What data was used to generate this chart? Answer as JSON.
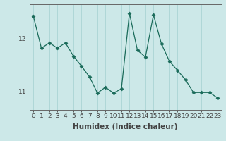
{
  "x": [
    0,
    1,
    2,
    3,
    4,
    5,
    6,
    7,
    8,
    9,
    10,
    11,
    12,
    13,
    14,
    15,
    16,
    17,
    18,
    19,
    20,
    21,
    22,
    23
  ],
  "y": [
    12.42,
    11.82,
    11.92,
    11.82,
    11.92,
    11.67,
    11.48,
    11.28,
    10.97,
    11.08,
    10.97,
    11.05,
    12.48,
    11.78,
    11.65,
    12.45,
    11.9,
    11.57,
    11.4,
    11.22,
    10.98,
    10.98,
    10.98,
    10.88
  ],
  "line_color": "#1a6b5a",
  "marker": "D",
  "marker_size": 2.5,
  "bg_color": "#cce8e8",
  "grid_color": "#aad4d4",
  "xlabel": "Humidex (Indice chaleur)",
  "yticks": [
    11,
    12
  ],
  "ylim": [
    10.65,
    12.65
  ],
  "xlim": [
    -0.5,
    23.5
  ],
  "xticks": [
    0,
    1,
    2,
    3,
    4,
    5,
    6,
    7,
    8,
    9,
    10,
    11,
    12,
    13,
    14,
    15,
    16,
    17,
    18,
    19,
    20,
    21,
    22,
    23
  ],
  "xlabel_fontsize": 7.5,
  "tick_fontsize": 6.5,
  "axis_color": "#444444",
  "spine_color": "#666666"
}
